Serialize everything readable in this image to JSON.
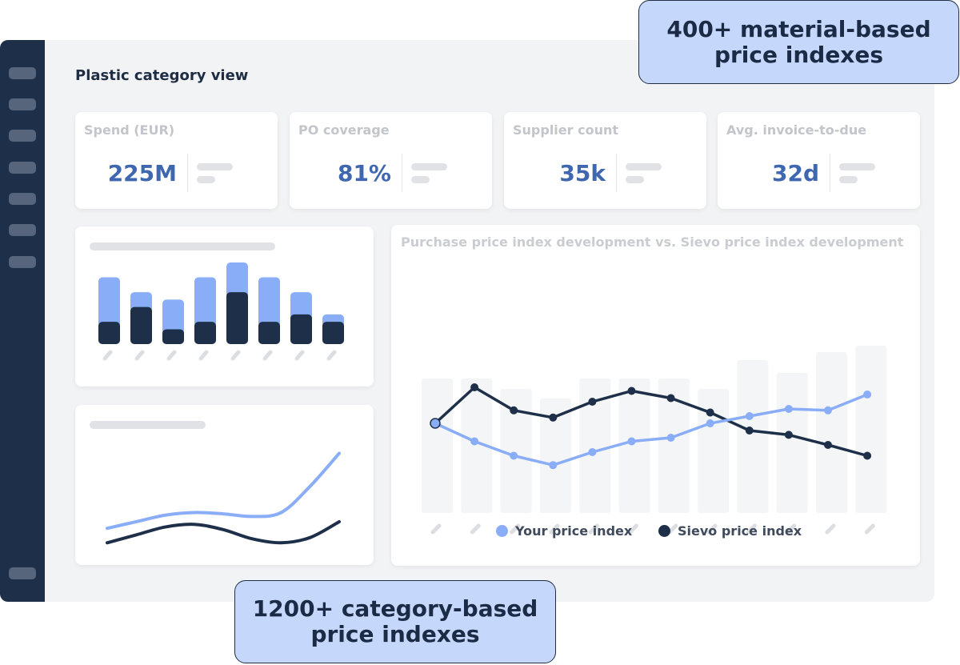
{
  "page": {
    "title": "Plastic category view"
  },
  "kpis": [
    {
      "label": "Spend (EUR)",
      "value": "225M"
    },
    {
      "label": "PO coverage",
      "value": "81%"
    },
    {
      "label": "Supplier count",
      "value": "35k"
    },
    {
      "label": "Avg. invoice-to-due",
      "value": "32d"
    }
  ],
  "colors": {
    "sidebar": "#1e3049",
    "accent": "#3f67b0",
    "your_index": "#8aadf7",
    "sievo_index": "#1e3049",
    "callout_bg": "#c5d7fa",
    "placeholder": "#e0e2e6"
  },
  "icons": {
    "sidebar_items": [
      "nav-item-icon",
      "nav-item-icon",
      "nav-item-icon",
      "nav-item-icon",
      "nav-item-icon",
      "nav-item-icon",
      "nav-item-icon",
      "nav-item-icon"
    ]
  },
  "main_chart": {
    "title": "Purchase price index development vs. Sievo price index development",
    "legend": {
      "your": "Your price index",
      "sievo": "Sievo price index"
    }
  },
  "callouts": {
    "material_line1": "400+ material-based",
    "material_line2": "price indexes",
    "category_line1": "1200+ category-based",
    "category_line2": "price indexes"
  },
  "chart_data": [
    {
      "type": "bar",
      "stacked": true,
      "categories": [
        "",
        "",
        "",
        "",
        "",
        "",
        "",
        ""
      ],
      "series": [
        {
          "values": [
            3,
            5,
            2,
            3,
            7,
            3,
            4,
            3
          ]
        },
        {
          "values": [
            6,
            2,
            4,
            6,
            4,
            6,
            3,
            1
          ]
        }
      ],
      "ylim": [
        0,
        11
      ]
    },
    {
      "type": "line",
      "x": [
        0,
        1,
        2,
        3,
        4,
        5,
        6,
        7,
        8,
        9,
        10,
        11
      ],
      "series": [
        {
          "name": "Your price index",
          "values": [
            100,
            97.5,
            95.5,
            94.2,
            96,
            97.5,
            98,
            100,
            101,
            102,
            101.8,
            104
          ]
        },
        {
          "name": "Sievo price index",
          "values": [
            100,
            105,
            101.8,
            100.8,
            103,
            104.5,
            103.5,
            101.5,
            99,
            98.4,
            97,
            95.5
          ]
        }
      ],
      "ylim": [
        90,
        110
      ],
      "legend": "bottom"
    },
    {
      "type": "line",
      "series": [
        {
          "values": [
            2.3,
            2.8,
            3.3,
            3.5,
            3.4,
            3.2,
            3.5,
            5.5,
            8
          ]
        },
        {
          "values": [
            1.2,
            1.8,
            2.4,
            2.6,
            2.2,
            1.5,
            1.2,
            1.6,
            2.8
          ]
        }
      ],
      "ylim": [
        0,
        9
      ]
    }
  ]
}
